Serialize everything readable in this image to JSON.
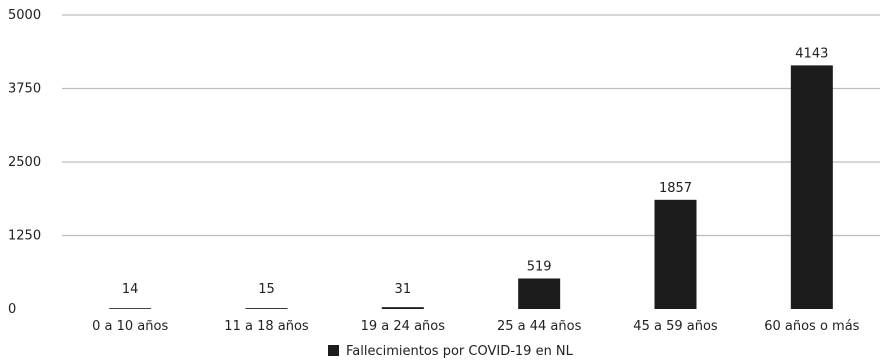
{
  "chart_data": {
    "type": "bar",
    "categories": [
      "0 a 10 años",
      "11 a 18 años",
      "19 a 24 años",
      "25 a 44 años",
      "45 a 59 años",
      "60 años o más"
    ],
    "series": [
      {
        "name": "Fallecimientos por COVID-19 en NL",
        "values": [
          14,
          15,
          31,
          519,
          1857,
          4143
        ]
      }
    ],
    "data_labels": [
      "14",
      "15",
      "31",
      "519",
      "1857",
      "4143"
    ],
    "y_ticks": [
      0,
      1250,
      2500,
      3750,
      5000
    ],
    "y_tick_labels": [
      "0",
      "1250",
      "2500",
      "3750",
      "5000"
    ],
    "ylim": [
      0,
      5000
    ],
    "grid": true,
    "legend_position": "bottom-center",
    "colors": {
      "bar": "#1c1c1c",
      "grid": "#bdbdbd",
      "text": "#222222"
    }
  }
}
